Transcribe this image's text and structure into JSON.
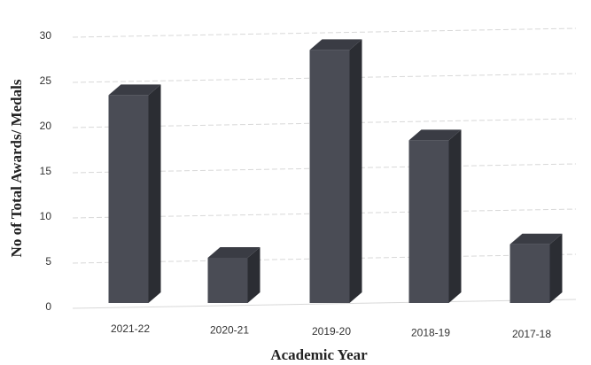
{
  "chart_data": {
    "type": "bar",
    "categories": [
      "2021-22",
      "2020-21",
      "2019-20",
      "2018-19",
      "2017-18"
    ],
    "values": [
      23,
      5,
      28,
      18,
      6.5
    ],
    "xlabel": "Academic Year",
    "ylabel": "No of Total Awards/ Medals",
    "yticks": [
      "0",
      "5",
      "10",
      "15",
      "20",
      "25",
      "30"
    ],
    "ylim": [
      0,
      30
    ],
    "grid": true,
    "style": "3d-column",
    "colors": {
      "bar_front": "#4a4c55",
      "bar_side": "#2b2d33",
      "bar_top": "#3a3c44",
      "grid": "#d8d8d8"
    }
  }
}
